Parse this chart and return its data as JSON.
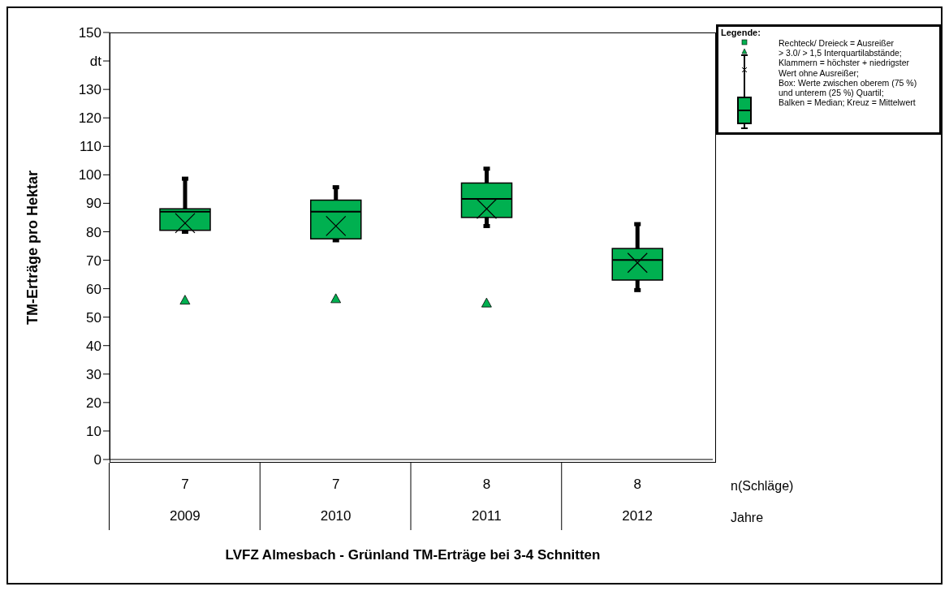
{
  "chart_data": {
    "type": "box",
    "title": "LVFZ Almesbach - Grünland TM-Erträge bei 3-4 Schnitten",
    "ylabel": "TM-Erträge pro Hektar",
    "legend_title": "Legende:",
    "categories": [
      "2009",
      "2010",
      "2011",
      "2012"
    ],
    "series": [
      {
        "color": "#00b050",
        "boxes": [
          {
            "low": 80,
            "q1": 80.5,
            "median": 87,
            "q3": 88,
            "high": 98.5,
            "mean": 83,
            "outliers": [
              56
            ]
          },
          {
            "low": 77,
            "q1": 77.5,
            "median": 87,
            "q3": 91,
            "high": 95.5,
            "mean": 82,
            "outliers": [
              56.5
            ]
          },
          {
            "low": 82,
            "q1": 85,
            "median": 91.5,
            "q3": 97,
            "high": 102,
            "mean": 88,
            "outliers": [
              55
            ]
          },
          {
            "low": 59.5,
            "q1": 63,
            "median": 70,
            "q3": 74,
            "high": 82.5,
            "mean": 69
          }
        ]
      }
    ],
    "ylim": [
      0,
      150
    ],
    "yticks": [
      0,
      10,
      20,
      30,
      40,
      50,
      60,
      70,
      80,
      90,
      100,
      110,
      120,
      130,
      {
        "value": 140,
        "label": "dt"
      },
      150
    ],
    "annotations": [
      "n(Schläge)",
      "Jahre",
      "7",
      "7",
      "8",
      "8",
      "Rechteck/ Dreieck = Ausreißer",
      "> 3.0/  > 1,5 Interquartilabstände;",
      "Klammern  = höchster + niedrigster",
      "Wert ohne Ausreißer;",
      "Box: Werte zwischen oberem (75 %)",
      "und unterem (25 %) Quartil;",
      "Balken = Median; Kreuz = Mittelwert"
    ]
  }
}
